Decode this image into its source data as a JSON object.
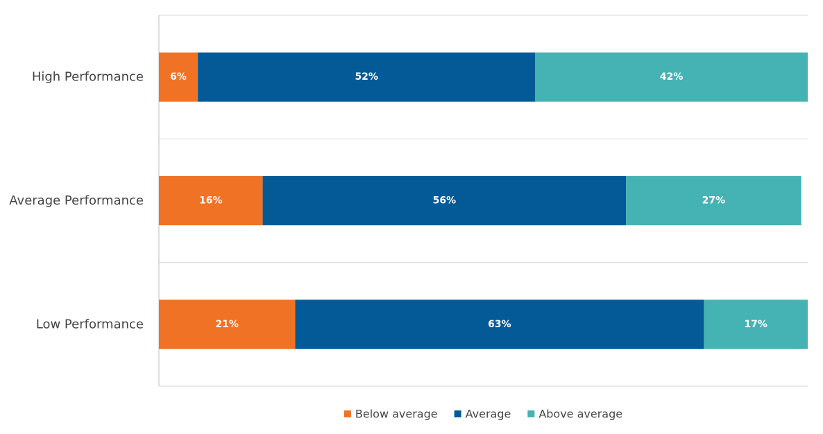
{
  "chart_data": {
    "type": "bar",
    "orientation": "horizontal",
    "stacked": true,
    "categories": [
      "High Performance",
      "Average Performance",
      "Low Performance"
    ],
    "series": [
      {
        "name": "Below average",
        "values": [
          6,
          16,
          21
        ],
        "labels": [
          "6%",
          "16%",
          "21%"
        ],
        "color": "#f07224"
      },
      {
        "name": "Average",
        "values": [
          52,
          56,
          63
        ],
        "labels": [
          "52%",
          "56%",
          "63%"
        ],
        "color": "#035a96"
      },
      {
        "name": "Above average",
        "values": [
          42,
          27,
          17
        ],
        "labels": [
          "42%",
          "27%",
          "17%"
        ],
        "color": "#45b2b4"
      }
    ],
    "xlim": [
      0,
      100
    ],
    "grid": true,
    "legend_position": "bottom"
  }
}
